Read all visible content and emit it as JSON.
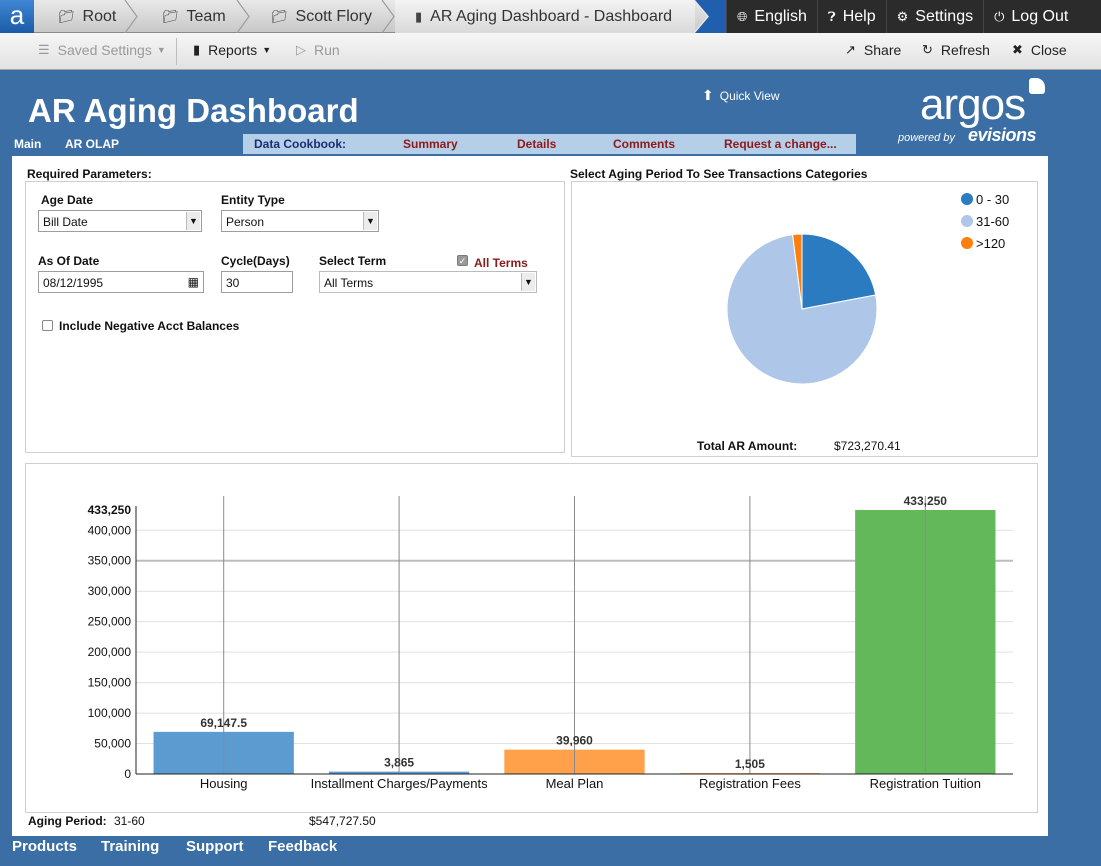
{
  "breadcrumbs": {
    "logo": "a",
    "root": "Root",
    "team": "Team",
    "user": "Scott Flory",
    "doc": "AR Aging Dashboard - Dashboard"
  },
  "top_actions": {
    "english": "English",
    "help": "Help",
    "settings": "Settings",
    "logout": "Log Out"
  },
  "toolbar": {
    "saved_settings": "Saved Settings",
    "reports": "Reports",
    "run": "Run",
    "share": "Share",
    "refresh": "Refresh",
    "close": "Close"
  },
  "header": {
    "title": "AR Aging Dashboard",
    "quick_view": "Quick View",
    "brand": "argos",
    "powered_by": "powered by",
    "evisions": "evisions"
  },
  "nav_tabs": [
    "Main",
    "AR OLAP"
  ],
  "cookbook": {
    "label": "Data Cookbook:",
    "items": [
      "Summary",
      "Details",
      "Comments",
      "Request a change..."
    ]
  },
  "params": {
    "title": "Required Parameters:",
    "age_date_label": "Age Date",
    "age_date_value": "Bill Date",
    "entity_type_label": "Entity Type",
    "entity_type_value": "Person",
    "as_of_date_label": "As Of Date",
    "as_of_date_value": "08/12/1995",
    "cycle_label": "Cycle(Days)",
    "cycle_value": "30",
    "term_label": "Select Term",
    "all_terms_label": "All Terms",
    "term_value": "All Terms",
    "negative_label": "Include Negative Acct Balances"
  },
  "pie_panel": {
    "title": "Select Aging Period To See Transactions Categories",
    "total_label": "Total AR Amount:",
    "total_value": "$723,270.41"
  },
  "aging": {
    "label": "Aging Period:",
    "value": "31-60",
    "amount": "$547,727.50"
  },
  "footer": [
    "Products",
    "Training",
    "Support",
    "Feedback"
  ],
  "chart_data": [
    {
      "type": "pie",
      "categories": [
        "0 - 30",
        "31-60",
        ">120"
      ],
      "values": [
        22,
        76,
        2
      ],
      "colors": [
        "#2a7bbf",
        "#aec7e8",
        "#ff7f0e"
      ],
      "legend": "top-right"
    },
    {
      "type": "bar",
      "categories": [
        "Housing",
        "Installment Charges/Payments",
        "Meal Plan",
        "Registration Fees",
        "Registration Tuition"
      ],
      "values": [
        69147.5,
        3865,
        39960,
        1505,
        433250
      ],
      "value_labels": [
        "69,147.5",
        "3,865",
        "39,960",
        "1,505",
        "433,250"
      ],
      "colors": [
        "#5b9bd0",
        "#5b9bd0",
        "#ffa04a",
        "#ffa04a",
        "#63b95a"
      ],
      "yticks": [
        0,
        50000,
        100000,
        150000,
        200000,
        250000,
        300000,
        350000,
        400000
      ],
      "ytick_labels": [
        "0",
        "50,000",
        "100,000",
        "150,000",
        "200,000",
        "250,000",
        "300,000",
        "350,000",
        "400,000"
      ],
      "ymax_label": "433,250",
      "ylim": [
        0,
        433250
      ],
      "grid": true
    }
  ]
}
